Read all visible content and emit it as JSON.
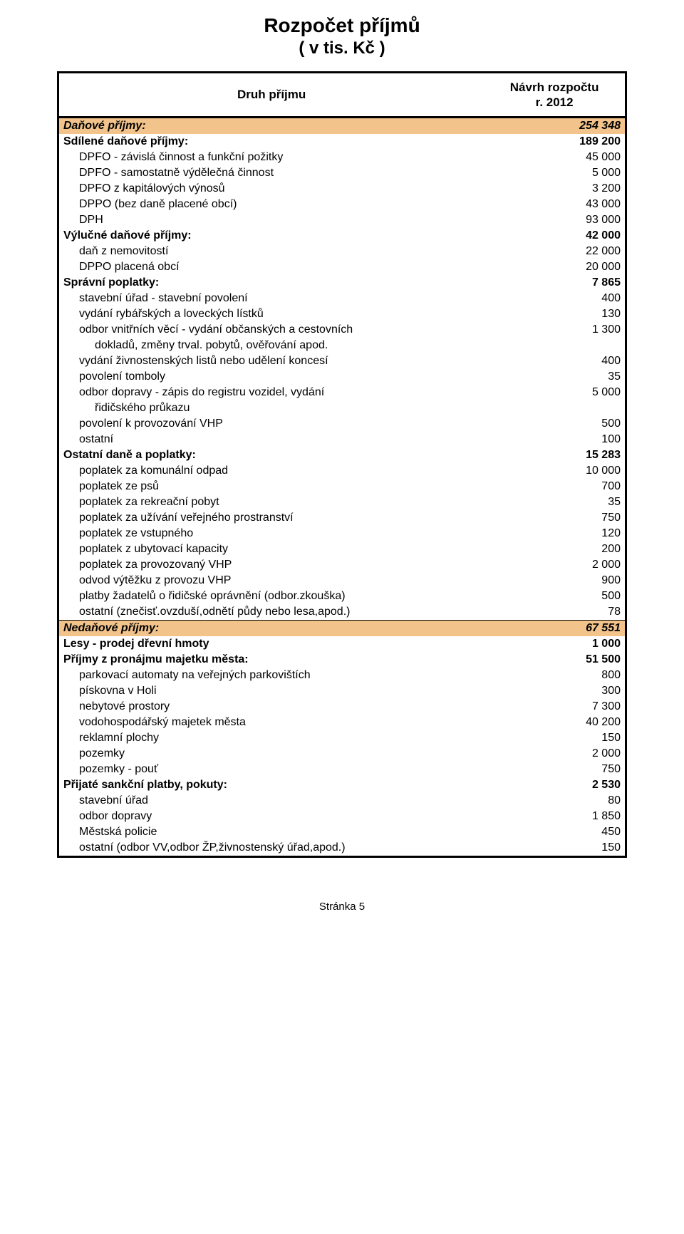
{
  "colors": {
    "shade": "#f2c48c",
    "border": "#000000",
    "background": "#ffffff"
  },
  "title": "Rozpočet příjmů",
  "subtitle": "( v tis. Kč )",
  "header": {
    "col1": "Druh příjmu",
    "col2_line1": "Návrh rozpočtu",
    "col2_line2": "r. 2012"
  },
  "rows": [
    {
      "type": "section",
      "shade": true,
      "italic": true,
      "label": "Daňové příjmy:",
      "value": "254 348"
    },
    {
      "type": "section",
      "label": "Sdílené daňové příjmy:",
      "value": "189 200"
    },
    {
      "type": "item",
      "label": "DPFO - závislá činnost a funkční požitky",
      "value": "45 000"
    },
    {
      "type": "item",
      "label": "DPFO - samostatně výdělečná činnost",
      "value": "5 000"
    },
    {
      "type": "item",
      "label": "DPFO z kapitálových výnosů",
      "value": "3 200"
    },
    {
      "type": "item",
      "label": "DPPO (bez daně placené obcí)",
      "value": "43 000"
    },
    {
      "type": "item",
      "label": "DPH",
      "value": "93 000"
    },
    {
      "type": "section",
      "label": "Výlučné daňové příjmy:",
      "value": "42 000"
    },
    {
      "type": "item",
      "label": "daň z nemovitostí",
      "value": "22 000"
    },
    {
      "type": "item",
      "label": "DPPO placená obcí",
      "value": "20 000"
    },
    {
      "type": "section",
      "label": "Správní poplatky:",
      "value": "7 865"
    },
    {
      "type": "item",
      "label": "stavební úřad - stavební povolení",
      "value": "400"
    },
    {
      "type": "item",
      "label": "vydání rybářských a loveckých lístků",
      "value": "130"
    },
    {
      "type": "item",
      "label": "odbor vnitřních věcí - vydání občanských  a cestovních",
      "value": "1 300"
    },
    {
      "type": "sub",
      "label": "dokladů, změny trval. pobytů, ověřování apod.",
      "value": ""
    },
    {
      "type": "item",
      "label": "vydání živnostenských listů nebo udělení koncesí",
      "value": "400"
    },
    {
      "type": "item",
      "label": "povolení tomboly",
      "value": "35"
    },
    {
      "type": "item",
      "label": "odbor dopravy - zápis do registru vozidel, vydání",
      "value": "5 000"
    },
    {
      "type": "sub",
      "label": "řidičského průkazu",
      "value": ""
    },
    {
      "type": "item",
      "label": "povolení k provozování VHP",
      "value": "500"
    },
    {
      "type": "item",
      "label": "ostatní",
      "value": "100"
    },
    {
      "type": "section",
      "label": "Ostatní daně a poplatky:",
      "value": "15 283"
    },
    {
      "type": "item",
      "label": "poplatek za komunální odpad",
      "value": "10 000"
    },
    {
      "type": "item",
      "label": "poplatek ze psů",
      "value": "700"
    },
    {
      "type": "item",
      "label": "poplatek za rekreační pobyt",
      "value": "35"
    },
    {
      "type": "item",
      "label": "poplatek za užívání veřejného prostranství",
      "value": "750"
    },
    {
      "type": "item",
      "label": "poplatek ze vstupného",
      "value": "120"
    },
    {
      "type": "item",
      "label": "poplatek z ubytovací kapacity",
      "value": "200"
    },
    {
      "type": "item",
      "label": "poplatek za provozovaný VHP",
      "value": "2 000"
    },
    {
      "type": "item",
      "label": "odvod výtěžku z provozu VHP",
      "value": "900"
    },
    {
      "type": "item",
      "label": "platby žadatelů o řidičské oprávnění (odbor.zkouška)",
      "value": "500"
    },
    {
      "type": "item",
      "label": "ostatní (znečisť.ovzduší,odnětí půdy nebo lesa,apod.)",
      "value": "78",
      "thin": true
    },
    {
      "type": "section",
      "shade": true,
      "italic": true,
      "label": "Nedaňové příjmy:",
      "value": "67 551"
    },
    {
      "type": "section",
      "label": "Lesy - prodej dřevní hmoty",
      "value": "1 000"
    },
    {
      "type": "section",
      "label": "Příjmy z pronájmu majetku města:",
      "value": "51 500"
    },
    {
      "type": "item",
      "label": "parkovací automaty na veřejných parkovištích",
      "value": "800"
    },
    {
      "type": "item",
      "label": "pískovna v Holi",
      "value": "300"
    },
    {
      "type": "item",
      "label": "nebytové prostory",
      "value": "7 300"
    },
    {
      "type": "item",
      "label": "vodohospodářský majetek města",
      "value": "40 200"
    },
    {
      "type": "item",
      "label": "reklamní plochy",
      "value": "150"
    },
    {
      "type": "item",
      "label": "pozemky",
      "value": "2 000"
    },
    {
      "type": "item",
      "label": "pozemky - pouť",
      "value": "750"
    },
    {
      "type": "section",
      "label": "Přijaté sankční platby, pokuty:",
      "value": "2 530"
    },
    {
      "type": "item",
      "label": "stavební úřad",
      "value": "80"
    },
    {
      "type": "item",
      "label": "odbor dopravy",
      "value": "1 850"
    },
    {
      "type": "item",
      "label": "Městská policie",
      "value": "450"
    },
    {
      "type": "item",
      "label": "ostatní (odbor VV,odbor ŽP,živnostenský úřad,apod.)",
      "value": "150"
    }
  ],
  "footer": "Stránka 5"
}
